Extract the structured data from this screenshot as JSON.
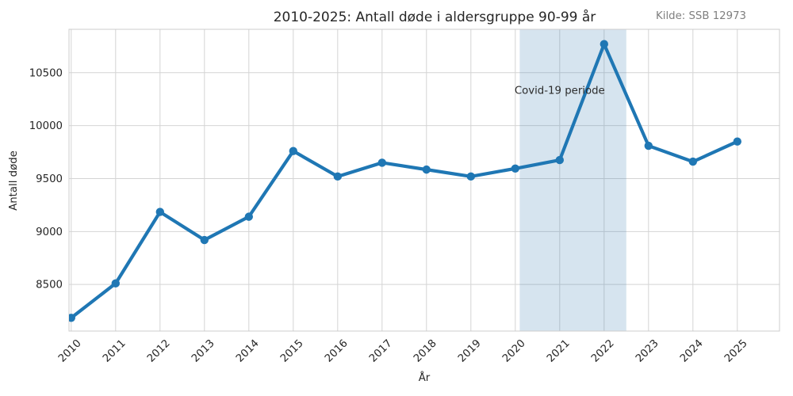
{
  "header": {
    "source_note": "Kilde: SSB 12973"
  },
  "chart_data": {
    "type": "line",
    "title": "2010-2025: Antall døde i aldersgruppe 90-99 år",
    "xlabel": "År",
    "ylabel": "Antall døde",
    "x": [
      2010,
      2011,
      2012,
      2013,
      2014,
      2015,
      2016,
      2017,
      2018,
      2019,
      2020,
      2021,
      2022,
      2023,
      2024,
      2025
    ],
    "series": [
      {
        "name": "Antall døde 90-99 år",
        "values": [
          8185,
          8510,
          9185,
          8920,
          9140,
          9760,
          9520,
          9650,
          9585,
          9520,
          9595,
          9675,
          10770,
          9810,
          9660,
          9850
        ]
      }
    ],
    "xticks": [
      2010,
      2011,
      2012,
      2013,
      2014,
      2015,
      2016,
      2017,
      2018,
      2019,
      2020,
      2021,
      2022,
      2023,
      2024,
      2025
    ],
    "yticks": [
      8500,
      9000,
      9500,
      10000,
      10500
    ],
    "xlim": [
      2009.95,
      2025.95
    ],
    "ylim": [
      8060,
      10910
    ],
    "grid": true,
    "legend": false,
    "style": "whitegrid",
    "line_color": "#1f77b4",
    "marker": "o",
    "grid_color": "#d4d4d4",
    "spine_color": "#cccccc",
    "text_color": "#262626",
    "source_color": "#7f7f7f",
    "band": {
      "label": "Covid-19 periode",
      "from_x": 2020.1,
      "to_x": 2022.5,
      "color": "#4682b4",
      "opacity": 0.22,
      "label_x": 2021.0,
      "label_y": 10300
    }
  }
}
